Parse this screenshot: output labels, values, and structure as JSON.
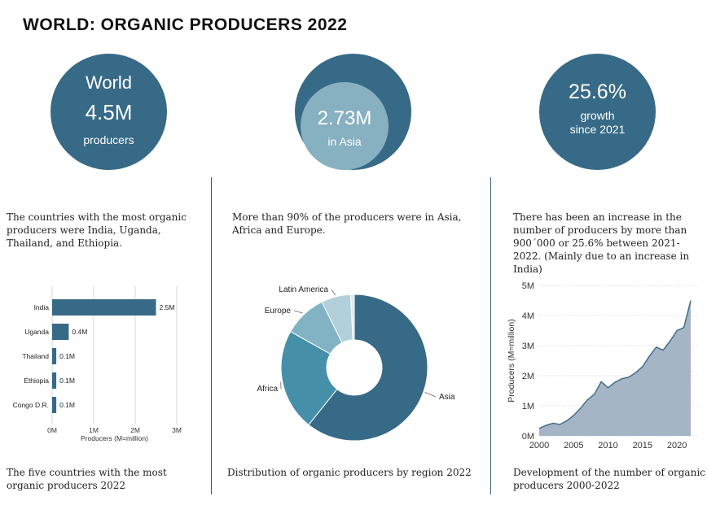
{
  "title": "WORLD: ORGANIC PRODUCERS 2022",
  "colors": {
    "accent": "#376a86",
    "circle_light": "#87b0c1",
    "area_fill": "#a5b5c6",
    "divider": "#2f5f77"
  },
  "stat1": {
    "line1": "World",
    "line2": "4.5M",
    "line3": "producers"
  },
  "stat2": {
    "line1": "2.73M",
    "line2": "in Asia"
  },
  "stat3": {
    "line1": "25.6%",
    "line2": "growth",
    "line3": "since 2021"
  },
  "panel1": {
    "description": "The countries with the most organic producers were India, Uganda, Thailand, and Ethiopia.",
    "caption": "The five countries with the most organic producers 2022"
  },
  "panel2": {
    "description": "More than 90% of the producers were in Asia, Africa and Europe.",
    "caption": "Distribution of organic producers by region 2022"
  },
  "panel3": {
    "description": "There has been an increase in the number of producers by more than 900´000 or 25.6% between 2021-2022. (Mainly due to an increase in India)",
    "caption": "Development of the number of organic producers 2000-2022"
  },
  "chart_data": [
    {
      "type": "bar",
      "orientation": "horizontal",
      "categories": [
        "India",
        "Uganda",
        "Thailand",
        "Ethiopia",
        "Congo D.R."
      ],
      "values": [
        2.5,
        0.4,
        0.1,
        0.1,
        0.1
      ],
      "value_labels": [
        "2.5M",
        "0.4M",
        "0.1M",
        "0.1M",
        "0.1M"
      ],
      "xticks": [
        "0M",
        "1M",
        "2M",
        "3M"
      ],
      "xlabel": "Producers (M=million)",
      "xlim": [
        0,
        3
      ],
      "grid": true,
      "color": "#376a86"
    },
    {
      "type": "pie",
      "donut": true,
      "categories": [
        "Asia",
        "Africa",
        "Europe",
        "Latin America",
        "Other"
      ],
      "values": [
        60.7,
        22.5,
        9.5,
        6.5,
        0.8
      ],
      "labels": [
        "Asia",
        "Africa",
        "Europe",
        "Latin America",
        ""
      ],
      "colors": [
        "#376a86",
        "#4590a8",
        "#82b3c5",
        "#b2d0dc",
        "#dfe9ee"
      ]
    },
    {
      "type": "area",
      "x": [
        2000,
        2001,
        2002,
        2003,
        2004,
        2005,
        2006,
        2007,
        2008,
        2009,
        2010,
        2011,
        2012,
        2013,
        2014,
        2015,
        2016,
        2017,
        2018,
        2019,
        2020,
        2021,
        2022
      ],
      "values": [
        0.25,
        0.35,
        0.42,
        0.38,
        0.5,
        0.68,
        0.92,
        1.2,
        1.38,
        1.8,
        1.6,
        1.78,
        1.9,
        1.95,
        2.1,
        2.3,
        2.65,
        2.95,
        2.85,
        3.15,
        3.5,
        3.6,
        4.5
      ],
      "xticks": [
        2000,
        2005,
        2010,
        2015,
        2020
      ],
      "yticks": [
        "0M",
        "1M",
        "2M",
        "3M",
        "4M",
        "5M"
      ],
      "ylabel": "Producers (M=million)",
      "ylim": [
        0,
        5
      ],
      "grid": true,
      "color": "#a5b5c6"
    }
  ]
}
